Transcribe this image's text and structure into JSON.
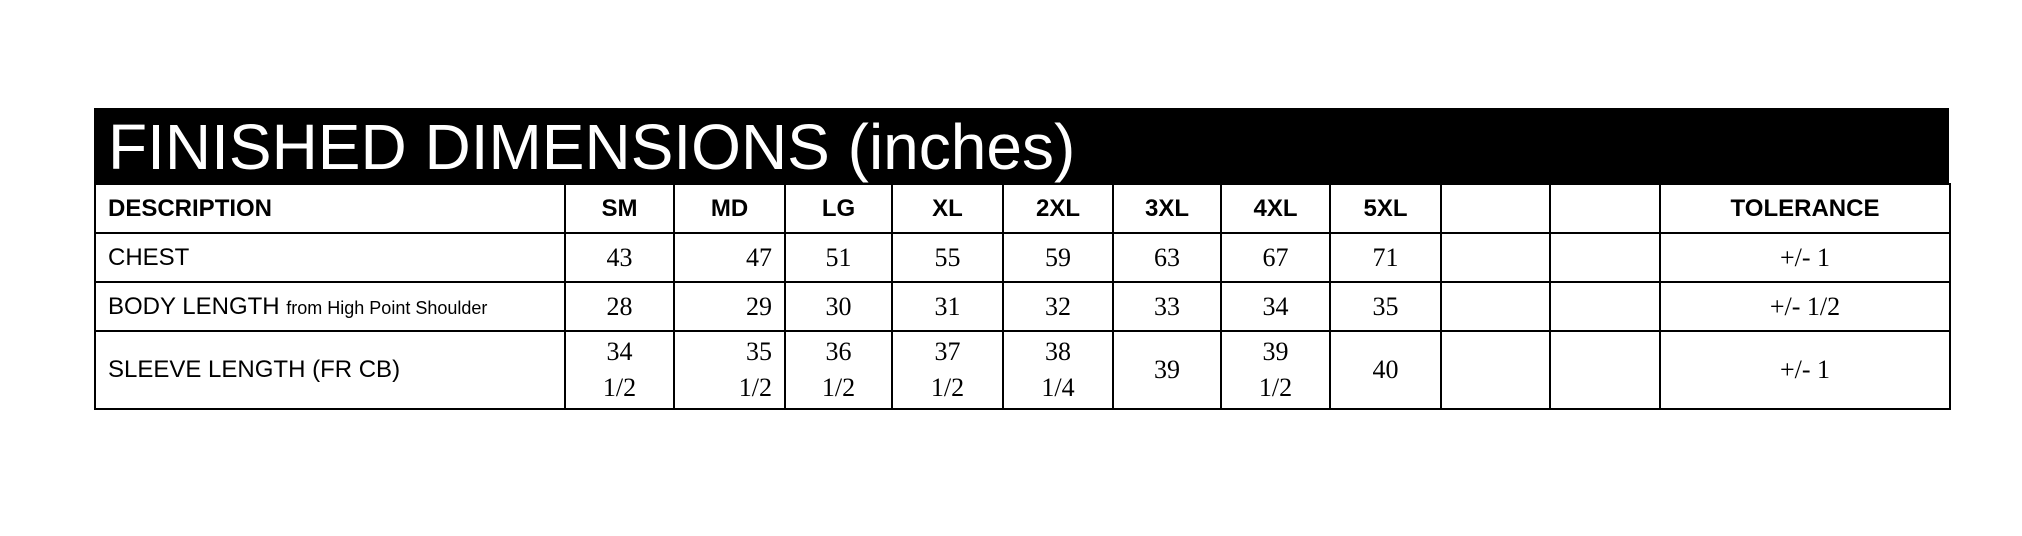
{
  "title": "FINISHED DIMENSIONS (inches)",
  "columns": [
    "DESCRIPTION",
    "SM",
    "MD",
    "LG",
    "XL",
    "2XL",
    "3XL",
    "4XL",
    "5XL",
    "",
    "",
    "TOLERANCE"
  ],
  "rows": [
    {
      "desc": "CHEST",
      "desc_note": "",
      "values": [
        [
          "43"
        ],
        [
          "47"
        ],
        [
          "51"
        ],
        [
          "55"
        ],
        [
          "59"
        ],
        [
          "63"
        ],
        [
          "67"
        ],
        [
          "71"
        ],
        [
          ""
        ],
        [
          ""
        ]
      ],
      "tolerance": "+/- 1"
    },
    {
      "desc": "BODY LENGTH",
      "desc_note": "from High Point Shoulder",
      "values": [
        [
          "28"
        ],
        [
          "29"
        ],
        [
          "30"
        ],
        [
          "31"
        ],
        [
          "32"
        ],
        [
          "33"
        ],
        [
          "34"
        ],
        [
          "35"
        ],
        [
          ""
        ],
        [
          ""
        ]
      ],
      "tolerance": "+/- 1/2"
    },
    {
      "desc": "SLEEVE LENGTH (FR CB)",
      "desc_note": "",
      "values": [
        [
          "34",
          "1/2"
        ],
        [
          "35",
          "1/2"
        ],
        [
          "36",
          "1/2"
        ],
        [
          "37",
          "1/2"
        ],
        [
          "38",
          "1/4"
        ],
        [
          "39"
        ],
        [
          "39",
          "1/2"
        ],
        [
          "40"
        ],
        [
          ""
        ],
        [
          ""
        ]
      ],
      "tolerance": "+/- 1"
    }
  ]
}
